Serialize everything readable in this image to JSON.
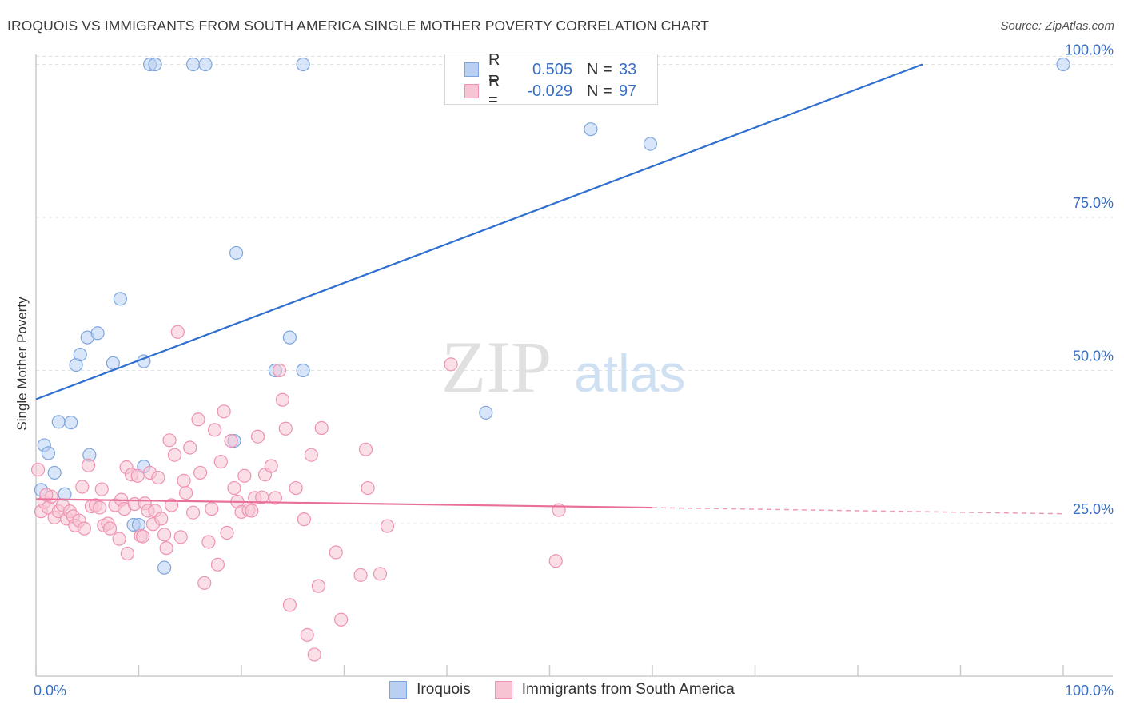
{
  "title": "IROQUOIS VS IMMIGRANTS FROM SOUTH AMERICA SINGLE MOTHER POVERTY CORRELATION CHART",
  "source": "Source: ZipAtlas.com",
  "watermark": {
    "zip": "ZIP",
    "atlas": "atlas"
  },
  "legend": {
    "rows": [
      {
        "r_label": "R =",
        "r_value": "0.505",
        "n_label": "N =",
        "n_value": "33"
      },
      {
        "r_label": "R =",
        "r_value": "-0.029",
        "n_label": "N =",
        "n_value": "97"
      }
    ]
  },
  "bottom_legend": {
    "series1": "Iroquois",
    "series2": "Immigrants from South America"
  },
  "colors": {
    "blue_fill": "#b9d0f3",
    "blue_stroke": "#7ea6de",
    "blue_line": "#2f6fcf",
    "pink_fill": "#f7c4d4",
    "pink_stroke": "#ee93b2",
    "pink_line": "#e8709a",
    "grid": "#e2e2e2",
    "tick_text": "#3a6fc4"
  },
  "chart_data": {
    "type": "scatter",
    "title": "IROQUOIS VS IMMIGRANTS FROM SOUTH AMERICA SINGLE MOTHER POVERTY CORRELATION CHART",
    "xlabel": "",
    "ylabel": "Single Mother Poverty",
    "xlim": [
      0,
      100
    ],
    "ylim": [
      0,
      105
    ],
    "x_tick_labels": [
      "0.0%",
      "100.0%"
    ],
    "y_ticks": [
      25,
      50,
      75,
      100
    ],
    "y_tick_labels": [
      "25.0%",
      "50.0%",
      "75.0%",
      "100.0%"
    ],
    "series": [
      {
        "name": "Iroquois",
        "color": "blue",
        "trend": {
          "x0": 0,
          "y0": 45.3,
          "x1": 86.3,
          "y1": 100
        },
        "points": [
          [
            0.5,
            30.5
          ],
          [
            0.8,
            37.8
          ],
          [
            1.2,
            36.5
          ],
          [
            1.8,
            33.3
          ],
          [
            2.2,
            41.6
          ],
          [
            2.8,
            29.8
          ],
          [
            3.4,
            41.5
          ],
          [
            3.9,
            50.9
          ],
          [
            4.3,
            52.6
          ],
          [
            5.0,
            55.4
          ],
          [
            6.0,
            56.1
          ],
          [
            5.2,
            36.2
          ],
          [
            7.5,
            51.2
          ],
          [
            8.2,
            61.7
          ],
          [
            9.5,
            24.8
          ],
          [
            10.0,
            24.8
          ],
          [
            10.5,
            51.5
          ],
          [
            11.1,
            100
          ],
          [
            11.6,
            100
          ],
          [
            10.5,
            34.3
          ],
          [
            12.5,
            17.8
          ],
          [
            15.3,
            100
          ],
          [
            16.5,
            100
          ],
          [
            19.3,
            38.5
          ],
          [
            19.5,
            69.2
          ],
          [
            23.3,
            50.0
          ],
          [
            24.7,
            55.4
          ],
          [
            26.0,
            100
          ],
          [
            26.0,
            50.0
          ],
          [
            43.8,
            43.1
          ],
          [
            54.0,
            89.4
          ],
          [
            59.8,
            87.0
          ],
          [
            100,
            100
          ]
        ]
      },
      {
        "name": "Immigrants from South America",
        "color": "pink",
        "trend": {
          "x0": 0,
          "y0": 29.0,
          "x1": 60,
          "y1": 27.6
        },
        "trend_dashed": {
          "x0": 60,
          "y0": 27.6,
          "x1": 100,
          "y1": 26.6
        },
        "points": [
          [
            0.2,
            33.8
          ],
          [
            0.5,
            27.0
          ],
          [
            0.8,
            28.5
          ],
          [
            1.2,
            27.6
          ],
          [
            1.5,
            29.4
          ],
          [
            1.8,
            26.0
          ],
          [
            2.2,
            27.0
          ],
          [
            2.6,
            28.0
          ],
          [
            3.0,
            25.8
          ],
          [
            3.3,
            27.0
          ],
          [
            3.6,
            26.2
          ],
          [
            3.8,
            24.7
          ],
          [
            4.2,
            25.5
          ],
          [
            4.5,
            31.0
          ],
          [
            4.7,
            24.2
          ],
          [
            5.1,
            34.5
          ],
          [
            5.4,
            27.8
          ],
          [
            5.8,
            28.0
          ],
          [
            6.2,
            27.6
          ],
          [
            6.4,
            30.6
          ],
          [
            6.6,
            24.7
          ],
          [
            7.0,
            25.0
          ],
          [
            7.2,
            24.2
          ],
          [
            7.7,
            28.0
          ],
          [
            8.1,
            22.5
          ],
          [
            8.3,
            28.9
          ],
          [
            8.6,
            27.4
          ],
          [
            8.8,
            34.2
          ],
          [
            8.9,
            20.1
          ],
          [
            9.3,
            33.0
          ],
          [
            9.6,
            28.2
          ],
          [
            9.9,
            32.8
          ],
          [
            10.2,
            23.0
          ],
          [
            10.4,
            22.9
          ],
          [
            10.6,
            28.3
          ],
          [
            10.9,
            27.1
          ],
          [
            11.1,
            33.3
          ],
          [
            11.4,
            24.9
          ],
          [
            11.6,
            27.1
          ],
          [
            11.9,
            32.5
          ],
          [
            12.2,
            25.8
          ],
          [
            12.5,
            23.2
          ],
          [
            12.7,
            21.0
          ],
          [
            13.0,
            38.6
          ],
          [
            13.2,
            28.0
          ],
          [
            13.5,
            36.2
          ],
          [
            13.8,
            56.3
          ],
          [
            14.1,
            22.8
          ],
          [
            14.4,
            32.0
          ],
          [
            14.6,
            30.0
          ],
          [
            15.0,
            37.4
          ],
          [
            15.3,
            26.8
          ],
          [
            15.8,
            42.0
          ],
          [
            16.0,
            33.3
          ],
          [
            16.4,
            15.3
          ],
          [
            16.8,
            22.0
          ],
          [
            17.1,
            27.4
          ],
          [
            17.4,
            40.3
          ],
          [
            17.7,
            18.3
          ],
          [
            18.0,
            35.1
          ],
          [
            18.3,
            43.3
          ],
          [
            18.6,
            23.5
          ],
          [
            19.0,
            38.5
          ],
          [
            19.3,
            30.8
          ],
          [
            19.6,
            28.6
          ],
          [
            20.0,
            26.9
          ],
          [
            20.3,
            32.8
          ],
          [
            20.7,
            27.2
          ],
          [
            21.0,
            27.1
          ],
          [
            21.3,
            29.2
          ],
          [
            21.6,
            39.2
          ],
          [
            22.0,
            29.3
          ],
          [
            22.3,
            33.0
          ],
          [
            22.9,
            34.4
          ],
          [
            23.3,
            29.2
          ],
          [
            23.7,
            50.0
          ],
          [
            24.0,
            45.2
          ],
          [
            24.3,
            40.5
          ],
          [
            24.7,
            11.7
          ],
          [
            25.3,
            30.8
          ],
          [
            26.1,
            25.7
          ],
          [
            26.4,
            6.8
          ],
          [
            26.8,
            36.2
          ],
          [
            27.1,
            3.6
          ],
          [
            27.5,
            14.8
          ],
          [
            27.8,
            40.6
          ],
          [
            29.2,
            20.3
          ],
          [
            29.7,
            9.3
          ],
          [
            31.6,
            16.6
          ],
          [
            32.1,
            37.1
          ],
          [
            32.3,
            30.8
          ],
          [
            33.5,
            16.8
          ],
          [
            34.2,
            24.6
          ],
          [
            40.4,
            51.0
          ],
          [
            50.6,
            18.9
          ],
          [
            50.9,
            27.2
          ],
          [
            1.0,
            29.7
          ]
        ]
      }
    ]
  }
}
